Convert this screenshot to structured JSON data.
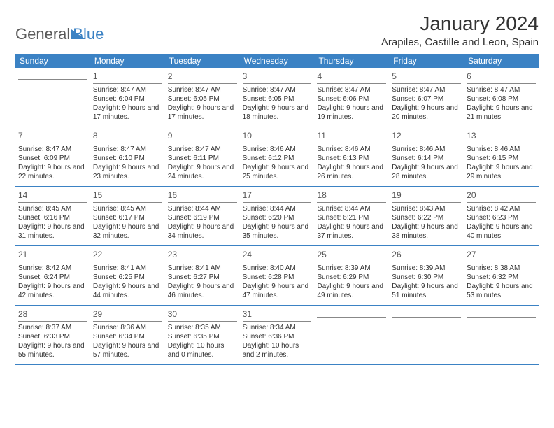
{
  "logo": {
    "part1": "General",
    "part2": "Blue"
  },
  "title": "January 2024",
  "location": "Arapiles, Castille and Leon, Spain",
  "colors": {
    "header_bg": "#3b82c4",
    "header_text": "#ffffff",
    "rule": "#3b82c4",
    "text": "#333333"
  },
  "days_of_week": [
    "Sunday",
    "Monday",
    "Tuesday",
    "Wednesday",
    "Thursday",
    "Friday",
    "Saturday"
  ],
  "weeks": [
    [
      {
        "n": "",
        "sr": "",
        "ss": "",
        "dl": ""
      },
      {
        "n": "1",
        "sr": "Sunrise: 8:47 AM",
        "ss": "Sunset: 6:04 PM",
        "dl": "Daylight: 9 hours and 17 minutes."
      },
      {
        "n": "2",
        "sr": "Sunrise: 8:47 AM",
        "ss": "Sunset: 6:05 PM",
        "dl": "Daylight: 9 hours and 17 minutes."
      },
      {
        "n": "3",
        "sr": "Sunrise: 8:47 AM",
        "ss": "Sunset: 6:05 PM",
        "dl": "Daylight: 9 hours and 18 minutes."
      },
      {
        "n": "4",
        "sr": "Sunrise: 8:47 AM",
        "ss": "Sunset: 6:06 PM",
        "dl": "Daylight: 9 hours and 19 minutes."
      },
      {
        "n": "5",
        "sr": "Sunrise: 8:47 AM",
        "ss": "Sunset: 6:07 PM",
        "dl": "Daylight: 9 hours and 20 minutes."
      },
      {
        "n": "6",
        "sr": "Sunrise: 8:47 AM",
        "ss": "Sunset: 6:08 PM",
        "dl": "Daylight: 9 hours and 21 minutes."
      }
    ],
    [
      {
        "n": "7",
        "sr": "Sunrise: 8:47 AM",
        "ss": "Sunset: 6:09 PM",
        "dl": "Daylight: 9 hours and 22 minutes."
      },
      {
        "n": "8",
        "sr": "Sunrise: 8:47 AM",
        "ss": "Sunset: 6:10 PM",
        "dl": "Daylight: 9 hours and 23 minutes."
      },
      {
        "n": "9",
        "sr": "Sunrise: 8:47 AM",
        "ss": "Sunset: 6:11 PM",
        "dl": "Daylight: 9 hours and 24 minutes."
      },
      {
        "n": "10",
        "sr": "Sunrise: 8:46 AM",
        "ss": "Sunset: 6:12 PM",
        "dl": "Daylight: 9 hours and 25 minutes."
      },
      {
        "n": "11",
        "sr": "Sunrise: 8:46 AM",
        "ss": "Sunset: 6:13 PM",
        "dl": "Daylight: 9 hours and 26 minutes."
      },
      {
        "n": "12",
        "sr": "Sunrise: 8:46 AM",
        "ss": "Sunset: 6:14 PM",
        "dl": "Daylight: 9 hours and 28 minutes."
      },
      {
        "n": "13",
        "sr": "Sunrise: 8:46 AM",
        "ss": "Sunset: 6:15 PM",
        "dl": "Daylight: 9 hours and 29 minutes."
      }
    ],
    [
      {
        "n": "14",
        "sr": "Sunrise: 8:45 AM",
        "ss": "Sunset: 6:16 PM",
        "dl": "Daylight: 9 hours and 31 minutes."
      },
      {
        "n": "15",
        "sr": "Sunrise: 8:45 AM",
        "ss": "Sunset: 6:17 PM",
        "dl": "Daylight: 9 hours and 32 minutes."
      },
      {
        "n": "16",
        "sr": "Sunrise: 8:44 AM",
        "ss": "Sunset: 6:19 PM",
        "dl": "Daylight: 9 hours and 34 minutes."
      },
      {
        "n": "17",
        "sr": "Sunrise: 8:44 AM",
        "ss": "Sunset: 6:20 PM",
        "dl": "Daylight: 9 hours and 35 minutes."
      },
      {
        "n": "18",
        "sr": "Sunrise: 8:44 AM",
        "ss": "Sunset: 6:21 PM",
        "dl": "Daylight: 9 hours and 37 minutes."
      },
      {
        "n": "19",
        "sr": "Sunrise: 8:43 AM",
        "ss": "Sunset: 6:22 PM",
        "dl": "Daylight: 9 hours and 38 minutes."
      },
      {
        "n": "20",
        "sr": "Sunrise: 8:42 AM",
        "ss": "Sunset: 6:23 PM",
        "dl": "Daylight: 9 hours and 40 minutes."
      }
    ],
    [
      {
        "n": "21",
        "sr": "Sunrise: 8:42 AM",
        "ss": "Sunset: 6:24 PM",
        "dl": "Daylight: 9 hours and 42 minutes."
      },
      {
        "n": "22",
        "sr": "Sunrise: 8:41 AM",
        "ss": "Sunset: 6:25 PM",
        "dl": "Daylight: 9 hours and 44 minutes."
      },
      {
        "n": "23",
        "sr": "Sunrise: 8:41 AM",
        "ss": "Sunset: 6:27 PM",
        "dl": "Daylight: 9 hours and 46 minutes."
      },
      {
        "n": "24",
        "sr": "Sunrise: 8:40 AM",
        "ss": "Sunset: 6:28 PM",
        "dl": "Daylight: 9 hours and 47 minutes."
      },
      {
        "n": "25",
        "sr": "Sunrise: 8:39 AM",
        "ss": "Sunset: 6:29 PM",
        "dl": "Daylight: 9 hours and 49 minutes."
      },
      {
        "n": "26",
        "sr": "Sunrise: 8:39 AM",
        "ss": "Sunset: 6:30 PM",
        "dl": "Daylight: 9 hours and 51 minutes."
      },
      {
        "n": "27",
        "sr": "Sunrise: 8:38 AM",
        "ss": "Sunset: 6:32 PM",
        "dl": "Daylight: 9 hours and 53 minutes."
      }
    ],
    [
      {
        "n": "28",
        "sr": "Sunrise: 8:37 AM",
        "ss": "Sunset: 6:33 PM",
        "dl": "Daylight: 9 hours and 55 minutes."
      },
      {
        "n": "29",
        "sr": "Sunrise: 8:36 AM",
        "ss": "Sunset: 6:34 PM",
        "dl": "Daylight: 9 hours and 57 minutes."
      },
      {
        "n": "30",
        "sr": "Sunrise: 8:35 AM",
        "ss": "Sunset: 6:35 PM",
        "dl": "Daylight: 10 hours and 0 minutes."
      },
      {
        "n": "31",
        "sr": "Sunrise: 8:34 AM",
        "ss": "Sunset: 6:36 PM",
        "dl": "Daylight: 10 hours and 2 minutes."
      },
      {
        "n": "",
        "sr": "",
        "ss": "",
        "dl": ""
      },
      {
        "n": "",
        "sr": "",
        "ss": "",
        "dl": ""
      },
      {
        "n": "",
        "sr": "",
        "ss": "",
        "dl": ""
      }
    ]
  ]
}
